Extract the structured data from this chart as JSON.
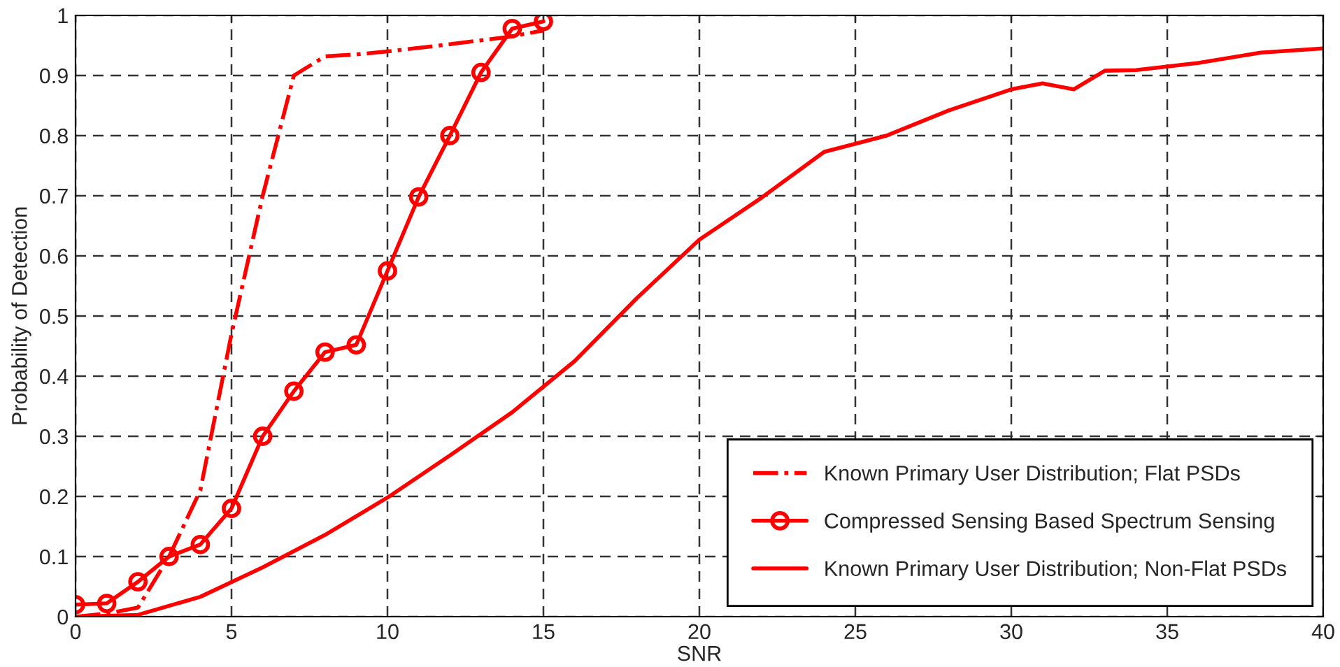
{
  "chart_data": {
    "type": "line",
    "xlabel": "SNR",
    "ylabel": "Probability of Detection",
    "xlim": [
      0,
      40
    ],
    "xticks": [
      0,
      5,
      10,
      15,
      20,
      25,
      30,
      35,
      40
    ],
    "ylim": [
      0,
      1
    ],
    "yticks": [
      0,
      0.1,
      0.2,
      0.3,
      0.4,
      0.5,
      0.6,
      0.7,
      0.8,
      0.9,
      1
    ],
    "grid": true,
    "legend": "bottom right",
    "series": [
      {
        "name": "Known Primary User Distribution; Flat PSDs",
        "color": "#ff0000",
        "line_style": "dashdot",
        "marker": "none",
        "x": [
          0,
          1,
          2,
          3,
          4,
          5,
          6,
          7,
          8,
          9,
          10,
          12,
          14,
          15
        ],
        "values": [
          0,
          0.005,
          0.015,
          0.1,
          0.21,
          0.47,
          0.7,
          0.9,
          0.932,
          0.935,
          0.94,
          0.952,
          0.965,
          0.975
        ]
      },
      {
        "name": "Compressed Sensing Based Spectrum Sensing",
        "color": "#ff0000",
        "line_style": "solid",
        "marker": "circle",
        "x": [
          0,
          1,
          2,
          3,
          4,
          5,
          6,
          7,
          8,
          9,
          10,
          11,
          12,
          13,
          14,
          15
        ],
        "values": [
          0.02,
          0.022,
          0.058,
          0.1,
          0.12,
          0.18,
          0.3,
          0.375,
          0.44,
          0.452,
          0.575,
          0.698,
          0.8,
          0.905,
          0.978,
          0.99
        ]
      },
      {
        "name": "Known Primary User Distribution; Non-Flat PSDs",
        "color": "#ff0000",
        "line_style": "solid",
        "marker": "none",
        "x": [
          0,
          2,
          4,
          6,
          8,
          10,
          12,
          14,
          16,
          18,
          20,
          22,
          24,
          26,
          28,
          30,
          31,
          32,
          33,
          34,
          36,
          38,
          40
        ],
        "values": [
          0,
          0.003,
          0.033,
          0.082,
          0.136,
          0.198,
          0.268,
          0.34,
          0.425,
          0.53,
          0.627,
          0.697,
          0.773,
          0.8,
          0.842,
          0.877,
          0.887,
          0.877,
          0.908,
          0.909,
          0.921,
          0.938,
          0.945
        ]
      }
    ]
  }
}
